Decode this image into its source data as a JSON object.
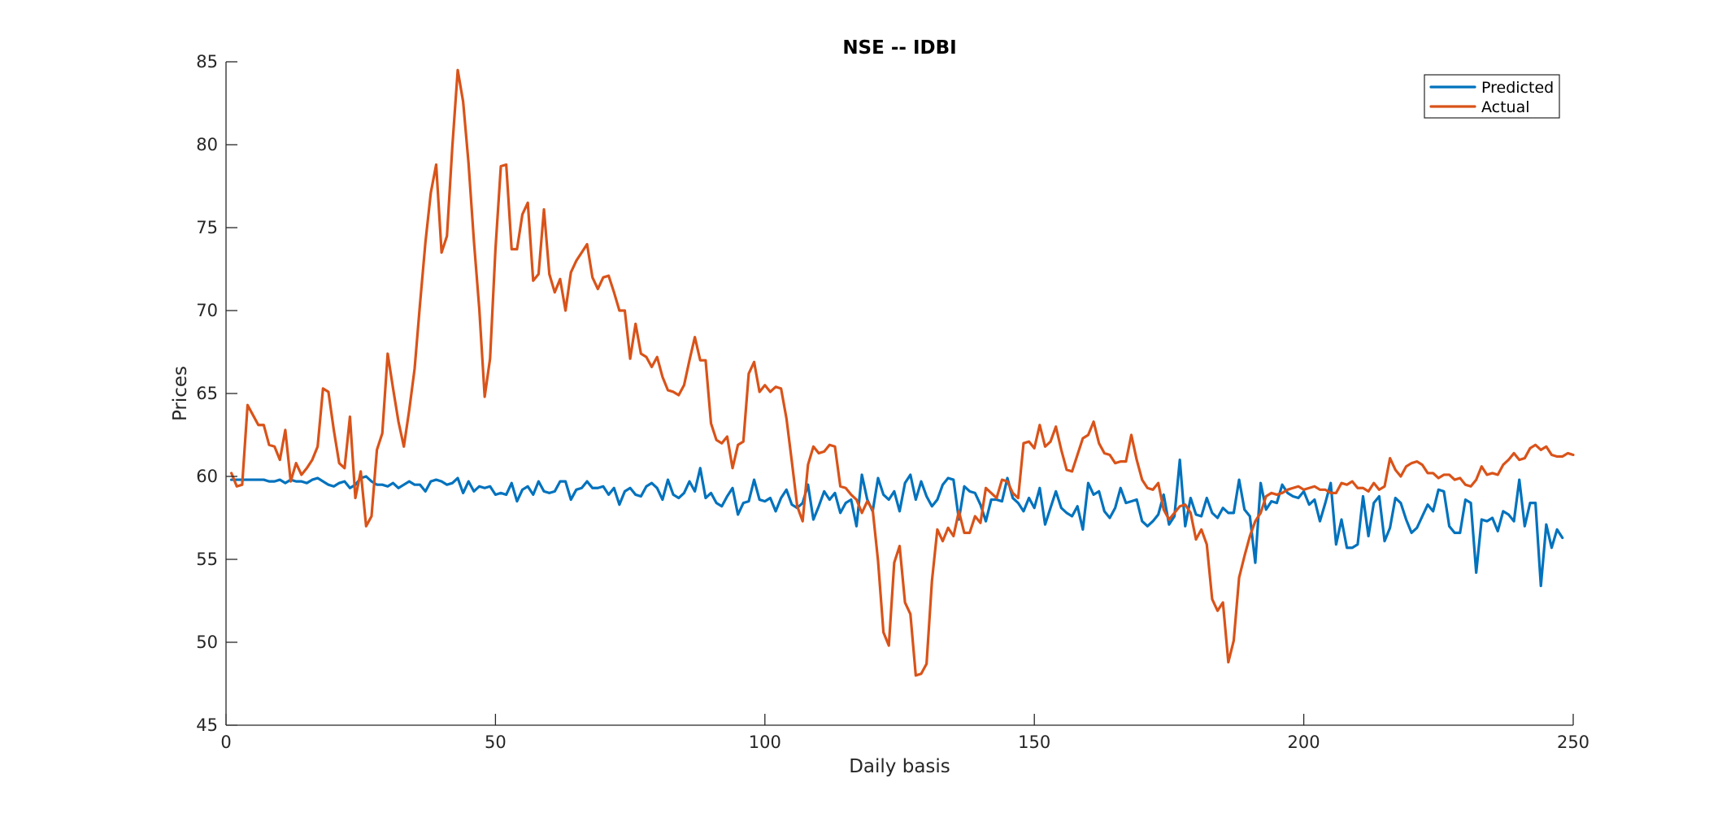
{
  "chart_data": {
    "type": "line",
    "title": "NSE -- IDBI",
    "xlabel": "Daily basis",
    "ylabel": "Prices",
    "xlim": [
      0,
      250
    ],
    "ylim": [
      45,
      85
    ],
    "xticks": [
      0,
      50,
      100,
      150,
      200,
      250
    ],
    "yticks": [
      45,
      50,
      55,
      60,
      65,
      70,
      75,
      80,
      85
    ],
    "grid": false,
    "legend_position": "top-right",
    "series": [
      {
        "name": "Predicted",
        "color": "#0072BD",
        "x_start": 1,
        "values": [
          59.8,
          59.8,
          59.8,
          59.8,
          59.8,
          59.8,
          59.8,
          59.7,
          59.7,
          59.8,
          59.6,
          59.8,
          59.7,
          59.7,
          59.6,
          59.8,
          59.9,
          59.7,
          59.5,
          59.4,
          59.6,
          59.7,
          59.3,
          59.5,
          59.9,
          60.0,
          59.7,
          59.5,
          59.5,
          59.4,
          59.6,
          59.3,
          59.5,
          59.7,
          59.5,
          59.5,
          59.1,
          59.7,
          59.8,
          59.7,
          59.5,
          59.6,
          59.9,
          59.0,
          59.7,
          59.1,
          59.4,
          59.3,
          59.4,
          58.9,
          59.0,
          58.9,
          59.6,
          58.5,
          59.2,
          59.4,
          58.9,
          59.7,
          59.1,
          59.0,
          59.1,
          59.7,
          59.7,
          58.6,
          59.2,
          59.3,
          59.7,
          59.3,
          59.3,
          59.4,
          58.9,
          59.3,
          58.3,
          59.1,
          59.3,
          58.9,
          58.8,
          59.4,
          59.6,
          59.3,
          58.6,
          59.8,
          58.9,
          58.7,
          59.0,
          59.7,
          59.1,
          60.5,
          58.7,
          59.0,
          58.4,
          58.2,
          58.8,
          59.3,
          57.7,
          58.4,
          58.5,
          59.8,
          58.6,
          58.5,
          58.7,
          57.9,
          58.7,
          59.2,
          58.3,
          58.1,
          58.4,
          59.5,
          57.4,
          58.2,
          59.1,
          58.6,
          59.0,
          57.8,
          58.4,
          58.6,
          57.0,
          60.1,
          58.6,
          57.9,
          59.9,
          58.9,
          58.6,
          59.1,
          57.9,
          59.6,
          60.1,
          58.6,
          59.7,
          58.8,
          58.2,
          58.6,
          59.5,
          59.9,
          59.8,
          57.4,
          59.4,
          59.1,
          59.0,
          58.3,
          57.3,
          58.6,
          58.6,
          58.5,
          59.9,
          58.7,
          58.4,
          57.9,
          58.7,
          58.1,
          59.3,
          57.1,
          58.1,
          59.1,
          58.1,
          57.8,
          57.6,
          58.2,
          56.8,
          59.6,
          58.9,
          59.1,
          57.9,
          57.5,
          58.1,
          59.3,
          58.4,
          58.5,
          58.6,
          57.3,
          57.0,
          57.3,
          57.7,
          58.9,
          57.1,
          57.6,
          61.0,
          57.0,
          58.7,
          57.7,
          57.6,
          58.7,
          57.8,
          57.5,
          58.1,
          57.8,
          57.8,
          59.8,
          58.0,
          57.6,
          54.8,
          59.6,
          58.0,
          58.5,
          58.4,
          59.5,
          59.0,
          58.8,
          58.7,
          59.1,
          58.3,
          58.6,
          57.3,
          58.4,
          59.6,
          55.9,
          57.4,
          55.7,
          55.7,
          55.9,
          58.8,
          56.4,
          58.4,
          58.8,
          56.1,
          56.9,
          58.7,
          58.4,
          57.4,
          56.6,
          56.9,
          57.6,
          58.3,
          57.9,
          59.2,
          59.1,
          57.0,
          56.6,
          56.6,
          58.6,
          58.4,
          54.2,
          57.4,
          57.3,
          57.5,
          56.7,
          57.9,
          57.7,
          57.3,
          59.8,
          57.0,
          58.4,
          58.4,
          53.4,
          57.1,
          55.7,
          56.8,
          56.3
        ]
      },
      {
        "name": "Actual",
        "color": "#D95319",
        "x_start": 1,
        "values": [
          60.2,
          59.4,
          59.5,
          64.3,
          63.7,
          63.1,
          63.1,
          61.9,
          61.8,
          61.0,
          62.8,
          59.7,
          60.8,
          60.1,
          60.5,
          61.0,
          61.8,
          65.3,
          65.1,
          62.8,
          60.8,
          60.5,
          63.6,
          58.7,
          60.3,
          57.0,
          57.6,
          61.6,
          62.6,
          67.4,
          65.3,
          63.3,
          61.8,
          64.0,
          66.5,
          70.4,
          74.1,
          77.1,
          78.8,
          73.5,
          74.5,
          79.9,
          84.5,
          82.6,
          78.9,
          74.2,
          70.1,
          64.8,
          67.1,
          73.7,
          78.7,
          78.8,
          73.7,
          73.7,
          75.8,
          76.5,
          71.8,
          72.2,
          76.1,
          72.2,
          71.1,
          71.9,
          70.0,
          72.3,
          73.0,
          73.5,
          74.0,
          72.0,
          71.3,
          72.0,
          72.1,
          71.1,
          70.0,
          70.0,
          67.1,
          69.2,
          67.4,
          67.2,
          66.6,
          67.2,
          66.0,
          65.2,
          65.1,
          64.9,
          65.5,
          67.0,
          68.4,
          67.0,
          67.0,
          63.2,
          62.2,
          62.0,
          62.4,
          60.5,
          61.9,
          62.1,
          66.2,
          66.9,
          65.1,
          65.5,
          65.1,
          65.4,
          65.3,
          63.5,
          60.9,
          58.2,
          57.3,
          60.7,
          61.8,
          61.4,
          61.5,
          61.9,
          61.8,
          59.4,
          59.3,
          58.9,
          58.6,
          57.8,
          58.5,
          58.0,
          54.9,
          50.6,
          49.8,
          54.8,
          55.8,
          52.4,
          51.7,
          48.0,
          48.1,
          48.7,
          53.7,
          56.8,
          56.1,
          56.9,
          56.4,
          57.9,
          56.6,
          56.6,
          57.6,
          57.2,
          59.3,
          59.0,
          58.7,
          59.8,
          59.7,
          59.0,
          58.7,
          62.0,
          62.1,
          61.7,
          63.1,
          61.8,
          62.1,
          63.0,
          61.6,
          60.4,
          60.3,
          61.3,
          62.3,
          62.5,
          63.3,
          62.0,
          61.4,
          61.3,
          60.8,
          60.9,
          60.9,
          62.5,
          61.0,
          59.8,
          59.3,
          59.2,
          59.6,
          58.0,
          57.4,
          57.8,
          58.2,
          58.3,
          57.8,
          56.2,
          56.8,
          55.9,
          52.6,
          51.9,
          52.4,
          48.8,
          50.1,
          53.9,
          55.2,
          56.4,
          57.3,
          57.8,
          58.8,
          59.0,
          58.9,
          59.0,
          59.2,
          59.3,
          59.4,
          59.2,
          59.3,
          59.4,
          59.2,
          59.2,
          59.0,
          59.0,
          59.6,
          59.5,
          59.7,
          59.3,
          59.3,
          59.1,
          59.6,
          59.2,
          59.4,
          61.1,
          60.4,
          60.0,
          60.6,
          60.8,
          60.9,
          60.7,
          60.2,
          60.2,
          59.9,
          60.1,
          60.1,
          59.8,
          59.9,
          59.5,
          59.4,
          59.8,
          60.6,
          60.1,
          60.2,
          60.1,
          60.7,
          61.0,
          61.4,
          61.0,
          61.1,
          61.7,
          61.9,
          61.6,
          61.8,
          61.3,
          61.2,
          61.2,
          61.4,
          61.3
        ]
      }
    ]
  }
}
